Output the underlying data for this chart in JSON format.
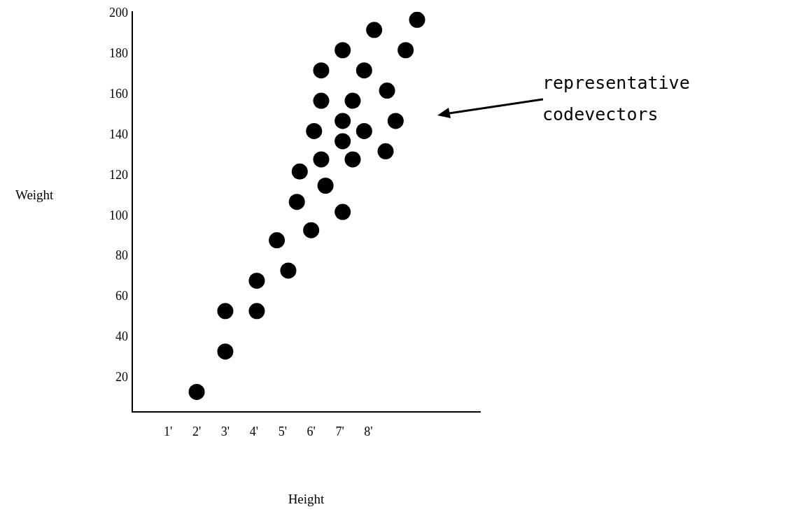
{
  "chart_data": {
    "type": "scatter",
    "xlabel": "Height",
    "ylabel": "Weight",
    "xlim": [
      -0.25,
      11.9
    ],
    "ylim": [
      3,
      201
    ],
    "xticks": [
      {
        "value": 1,
        "label": "1'"
      },
      {
        "value": 2,
        "label": "2'"
      },
      {
        "value": 3,
        "label": "3'"
      },
      {
        "value": 4,
        "label": "4'"
      },
      {
        "value": 5,
        "label": "5'"
      },
      {
        "value": 6,
        "label": "6'"
      },
      {
        "value": 7,
        "label": "7'"
      },
      {
        "value": 8,
        "label": "8'"
      }
    ],
    "yticks": [
      20,
      40,
      60,
      80,
      100,
      120,
      140,
      160,
      180,
      200
    ],
    "grid": false,
    "legend": false,
    "marker": "circle",
    "series": [
      {
        "color": "#000000",
        "x": [
          2.0,
          3.0,
          3.0,
          4.1,
          4.1,
          4.8,
          5.2,
          5.5,
          5.6,
          6.0,
          6.1,
          6.35,
          6.35,
          6.35,
          6.5,
          7.1,
          7.1,
          7.1,
          7.1,
          7.45,
          7.45,
          7.85,
          7.85,
          8.2,
          8.6,
          8.65,
          8.95,
          9.3,
          9.7
        ],
        "values": [
          13,
          33,
          53,
          53,
          68,
          88,
          73,
          107,
          122,
          93,
          142,
          128,
          157,
          172,
          115,
          102,
          137,
          147,
          182,
          128,
          157,
          142,
          172,
          192,
          132,
          162,
          147,
          182,
          197
        ]
      }
    ],
    "annotations": [
      "representative\ncodevectors"
    ]
  }
}
